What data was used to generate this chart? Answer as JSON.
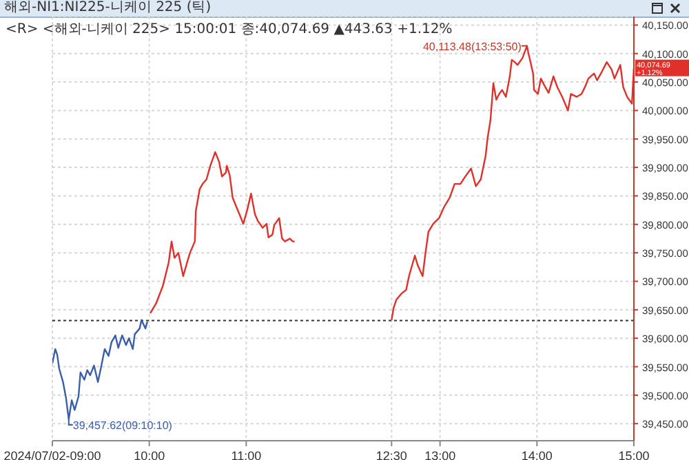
{
  "chart_data": {
    "type": "line",
    "title": "해외-NI1:NI225-니케이 225 (틱)",
    "subtitle": "<R> <해외-니케이 225> 15:00:01 종:40,074.69 ▲443.63 +1.12%",
    "series": [
      {
        "color": "#3a5fa8",
        "x": [
          9.0,
          9.03,
          9.05,
          9.07,
          9.11,
          9.14,
          9.169,
          9.2,
          9.23,
          9.27,
          9.29,
          9.33,
          9.36,
          9.39,
          9.43,
          9.47,
          9.5,
          9.54,
          9.58,
          9.61,
          9.65,
          9.68,
          9.72,
          9.76,
          9.79,
          9.83,
          9.85,
          9.9,
          9.92,
          9.96,
          9.98
        ],
        "values": [
          39556,
          39581,
          39571,
          39547,
          39523,
          39496,
          39457.62,
          39491,
          39474,
          39498,
          39540,
          39527,
          39544,
          39535,
          39552,
          39523,
          39547,
          39581,
          39569,
          39593,
          39605,
          39583,
          39605,
          39588,
          39600,
          39581,
          39607,
          39617,
          39632,
          39617,
          39629
        ]
      },
      {
        "color": "#e0302a",
        "x": [
          10.01,
          10.07,
          10.14,
          10.2,
          10.23,
          10.26,
          10.3,
          10.35,
          10.39,
          10.42,
          10.47,
          10.48,
          10.52,
          10.55,
          10.59,
          10.63,
          10.68,
          10.72,
          10.75,
          10.79,
          10.8,
          10.83,
          10.86,
          10.9,
          10.93,
          10.97,
          11.01,
          11.05,
          11.09,
          11.12,
          11.17,
          11.21,
          11.23,
          11.27,
          11.29,
          11.34,
          11.37,
          11.4,
          11.45,
          11.48,
          11.5,
          12.0,
          12.5,
          12.52,
          12.55,
          12.6,
          12.65,
          12.68,
          12.74,
          12.77,
          12.82,
          12.85,
          12.88,
          12.93,
          12.99,
          13.04,
          13.1,
          13.15,
          13.21,
          13.26,
          13.32,
          13.37,
          13.42,
          13.47,
          13.49,
          13.52,
          13.55,
          13.58,
          13.61,
          13.64,
          13.68,
          13.72,
          13.74,
          13.77,
          13.8,
          13.85,
          13.897,
          13.91,
          13.96,
          13.97,
          14.01,
          14.04,
          14.08,
          14.12,
          14.17,
          14.21,
          14.26,
          14.32,
          14.35,
          14.41,
          14.46,
          14.5,
          14.53,
          14.59,
          14.62,
          14.66,
          14.72,
          14.77,
          14.8,
          14.86,
          14.89,
          14.93,
          14.98,
          15.0
        ],
        "values": [
          39644,
          39661,
          39692,
          39733,
          39770,
          39741,
          39750,
          39709,
          39733,
          39750,
          39770,
          39823,
          39862,
          39871,
          39879,
          39903,
          39927,
          39910,
          39884,
          39891,
          39903,
          39886,
          39847,
          39830,
          39818,
          39801,
          39825,
          39854,
          39818,
          39806,
          39794,
          39801,
          39777,
          39782,
          39799,
          39811,
          39775,
          39770,
          39775,
          39770,
          39770,
          null,
          39632,
          39653,
          39668,
          39678,
          39685,
          39709,
          39745,
          39728,
          39709,
          39750,
          39787,
          39801,
          39811,
          39830,
          39847,
          39871,
          39871,
          39884,
          39898,
          39867,
          39879,
          39920,
          39951,
          39983,
          40048,
          40019,
          40029,
          40036,
          40024,
          40060,
          40089,
          40085,
          40080,
          40092,
          40113.48,
          40102,
          40065,
          40036,
          40029,
          40056,
          40043,
          40031,
          40060,
          40041,
          40024,
          40000,
          40029,
          40024,
          40029,
          40043,
          40056,
          40065,
          40053,
          40065,
          40085,
          40072,
          40056,
          40080,
          40041,
          40024,
          40012,
          40074.69
        ]
      }
    ],
    "xlim": [
      9,
      15
    ],
    "xticks": [
      {
        "value": 9,
        "label": "2024/07/02-09:00"
      },
      {
        "value": 10,
        "label": "10:00"
      },
      {
        "value": 11,
        "label": "11:00"
      },
      {
        "value": 12.5,
        "label": "12:30"
      },
      {
        "value": 13,
        "label": "13:00"
      },
      {
        "value": 14,
        "label": "14:00"
      },
      {
        "value": 15,
        "label": "15:00"
      }
    ],
    "ylim": [
      39420,
      40165
    ],
    "yticks": [
      {
        "value": 39450,
        "label": "39,450.00"
      },
      {
        "value": 39500,
        "label": "39,500.00"
      },
      {
        "value": 39550,
        "label": "39,550.00"
      },
      {
        "value": 39600,
        "label": "39,600.00"
      },
      {
        "value": 39650,
        "label": "39,650.00"
      },
      {
        "value": 39700,
        "label": "39,700.00"
      },
      {
        "value": 39750,
        "label": "39,750.00"
      },
      {
        "value": 39800,
        "label": "39,800.00"
      },
      {
        "value": 39850,
        "label": "39,850.00"
      },
      {
        "value": 39900,
        "label": "39,900.00"
      },
      {
        "value": 39950,
        "label": "39,950.00"
      },
      {
        "value": 40000,
        "label": "40,000.00"
      },
      {
        "value": 40050,
        "label": "40,050.00"
      },
      {
        "value": 40100,
        "label": "40,100.00"
      },
      {
        "value": 40150,
        "label": "40,150.00"
      }
    ],
    "grid": true,
    "line_style": "solid",
    "ref_lines": [
      {
        "axis": "y",
        "value": 39631,
        "color": "#333333",
        "line_style": "dotted"
      }
    ],
    "annotations": [
      {
        "text": "40,113.48(13:53:50)",
        "x": 13.897,
        "y": 40113.48
      },
      {
        "text": "39,457.62(09:10:10)",
        "x": 9.169,
        "y": 39457.62
      },
      "40,074.69 +1.12%"
    ]
  }
}
